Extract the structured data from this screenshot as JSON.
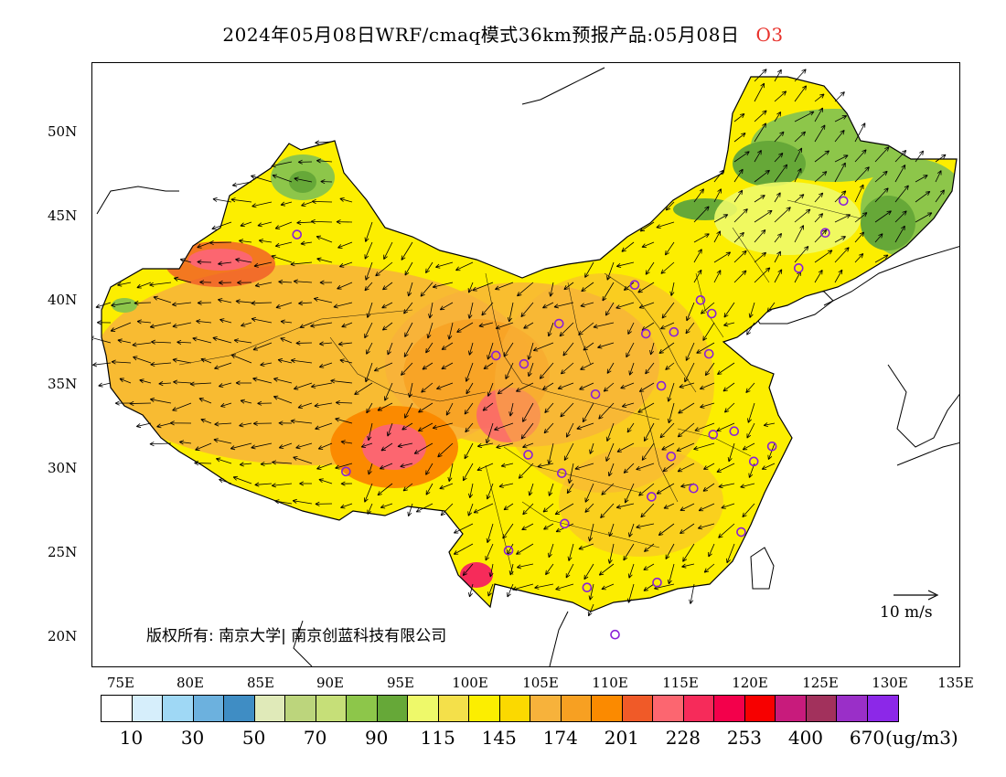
{
  "title": {
    "text": "2024年05月08日WRF/cmaq模式36km预报产品:05月08日",
    "species": "O3",
    "species_color": "#e8302a"
  },
  "map": {
    "lon_range": [
      73,
      135
    ],
    "lat_range": [
      18,
      54
    ],
    "lat_labels": [
      "20N",
      "25N",
      "30N",
      "35N",
      "40N",
      "45N",
      "50N"
    ],
    "lon_labels": [
      "75E",
      "80E",
      "85E",
      "90E",
      "95E",
      "100E",
      "105E",
      "110E",
      "115E",
      "120E",
      "125E",
      "130E",
      "135E"
    ],
    "copyright": "版权所有: 南京大学| 南京创蓝科技有限公司",
    "reference_vector": "10 m/s"
  },
  "colorbar": {
    "colors": [
      "#ffffff",
      "#d6eefb",
      "#9fd8f5",
      "#6cb1de",
      "#3f8dc4",
      "#e0eab9",
      "#bcd57c",
      "#c6df78",
      "#8dc64a",
      "#66a838",
      "#eef96a",
      "#f4e04a",
      "#fcee00",
      "#fbd900",
      "#f7b23b",
      "#f7a022",
      "#fb8a00",
      "#f05a28",
      "#fc6670",
      "#f62b5a",
      "#f3004b",
      "#f70000",
      "#c81b7c",
      "#a2315c",
      "#9a2fc8",
      "#8c28e8"
    ],
    "labels": [
      "10",
      "30",
      "50",
      "70",
      "90",
      "115",
      "145",
      "174",
      "201",
      "228",
      "253",
      "400",
      "670"
    ],
    "unit": "(ug/m3)"
  },
  "stations": [
    [
      87.6,
      43.8
    ],
    [
      91.1,
      29.7
    ],
    [
      101.8,
      36.6
    ],
    [
      103.8,
      36.1
    ],
    [
      106.3,
      38.5
    ],
    [
      104.1,
      30.7
    ],
    [
      106.5,
      29.6
    ],
    [
      106.7,
      26.6
    ],
    [
      102.7,
      25.0
    ],
    [
      108.3,
      22.8
    ],
    [
      110.3,
      20.0
    ],
    [
      113.3,
      23.1
    ],
    [
      112.9,
      28.2
    ],
    [
      114.3,
      30.6
    ],
    [
      115.9,
      28.7
    ],
    [
      119.3,
      26.1
    ],
    [
      120.2,
      30.3
    ],
    [
      121.5,
      31.2
    ],
    [
      118.8,
      32.1
    ],
    [
      117.3,
      31.9
    ],
    [
      113.6,
      34.8
    ],
    [
      117.0,
      36.7
    ],
    [
      114.5,
      38.0
    ],
    [
      112.5,
      37.9
    ],
    [
      111.7,
      40.8
    ],
    [
      116.4,
      39.9
    ],
    [
      117.2,
      39.1
    ],
    [
      123.4,
      41.8
    ],
    [
      125.3,
      43.9
    ],
    [
      126.6,
      45.8
    ],
    [
      108.9,
      34.3
    ]
  ]
}
